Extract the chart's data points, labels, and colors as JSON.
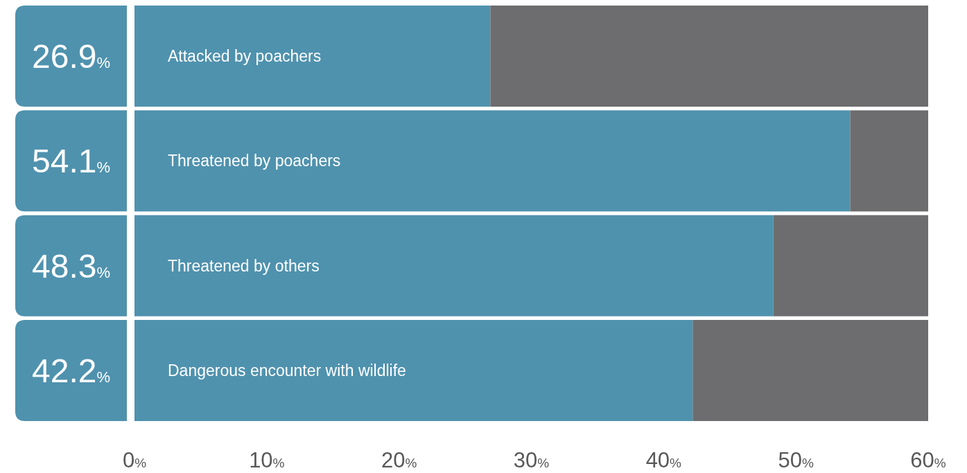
{
  "chart_data": {
    "type": "bar",
    "orientation": "horizontal",
    "stacked": true,
    "categories": [
      "Attacked by poachers",
      "Threatened by poachers",
      "Threatened by others",
      "Dangerous encounter with wildlife"
    ],
    "series": [
      {
        "color": "#4f92ae",
        "values": [
          26.9,
          54.1,
          48.3,
          42.2
        ],
        "value_labels": [
          "26.9%",
          "54.1%",
          "48.3%",
          "42.2%"
        ]
      },
      {
        "color": "#6d6d6f",
        "values": [
          33.1,
          5.9,
          11.7,
          17.8
        ]
      }
    ],
    "xlim": [
      0,
      60
    ],
    "xticks": [
      {
        "value": 0,
        "label": "0%"
      },
      {
        "value": 10,
        "label": "10%"
      },
      {
        "value": 20,
        "label": "20%"
      },
      {
        "value": 30,
        "label": "30%"
      },
      {
        "value": 40,
        "label": "40%"
      },
      {
        "value": 50,
        "label": "50%"
      },
      {
        "value": 60,
        "label": "60%"
      }
    ]
  }
}
